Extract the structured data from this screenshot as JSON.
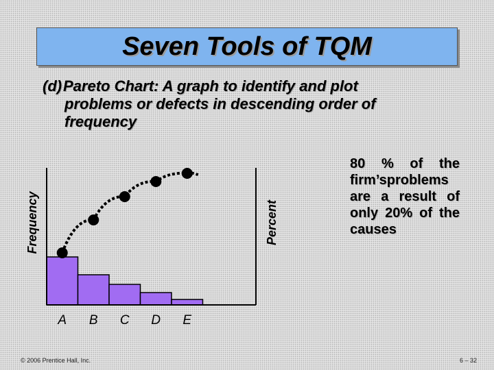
{
  "slide": {
    "title": "Seven Tools of TQM",
    "bullet_marker": "(d)",
    "bullet_text": "Pareto Chart: A graph to identify and plot problems or defects in descending order of frequency",
    "note": "80 % of the firm’sproblems are a result of only 20% of the causes",
    "footer_left": "© 2006 Prentice Hall, Inc.",
    "footer_right": "6 – 32"
  },
  "chart_data": {
    "type": "bar",
    "categories": [
      "A",
      "B",
      "C",
      "D",
      "E"
    ],
    "values": [
      35,
      22,
      15,
      9,
      4
    ],
    "cumulative": [
      38,
      62,
      79,
      90,
      96
    ],
    "xlabel": "",
    "ylabel": "Frequency",
    "ylabel_right": "Percent",
    "ylim": [
      0,
      100
    ],
    "grid": false,
    "colors": {
      "bar": "#a16cf2",
      "line": "#000000"
    }
  }
}
